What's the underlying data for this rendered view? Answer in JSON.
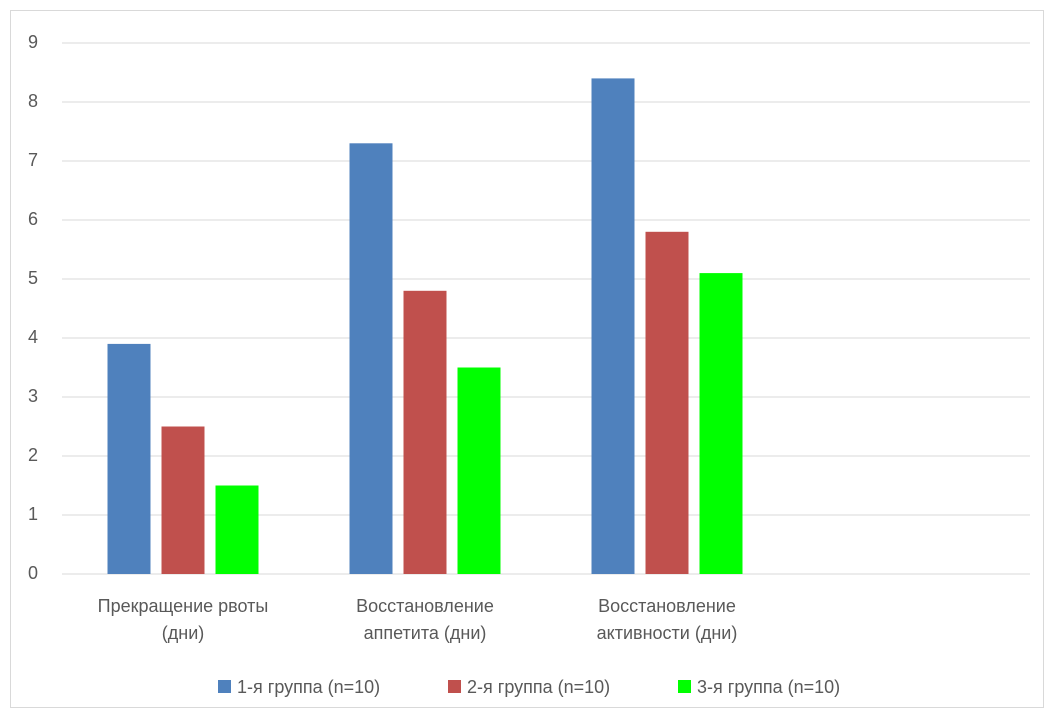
{
  "chart_data": {
    "type": "bar",
    "categories": [
      [
        "Прекращение рвоты",
        "(дни)"
      ],
      [
        "Восстановление",
        "аппетита (дни)"
      ],
      [
        "Восстановление",
        "активности (дни)"
      ],
      [
        ""
      ]
    ],
    "series": [
      {
        "name": "1-я группа (n=10)",
        "color": "#4f81bd",
        "values": [
          3.9,
          7.3,
          8.4,
          null
        ]
      },
      {
        "name": "2-я группа (n=10)",
        "color": "#c0504d",
        "values": [
          2.5,
          4.8,
          5.8,
          null
        ]
      },
      {
        "name": "3-я группа (n=10)",
        "color": "#00ff00",
        "values": [
          1.5,
          3.5,
          5.1,
          null
        ]
      }
    ],
    "y_ticks": [
      0,
      1,
      2,
      3,
      4,
      5,
      6,
      7,
      8,
      9
    ],
    "ylim": [
      0,
      9
    ],
    "grid": true,
    "legend_position": "bottom",
    "title": "",
    "xlabel": "",
    "ylabel": ""
  }
}
